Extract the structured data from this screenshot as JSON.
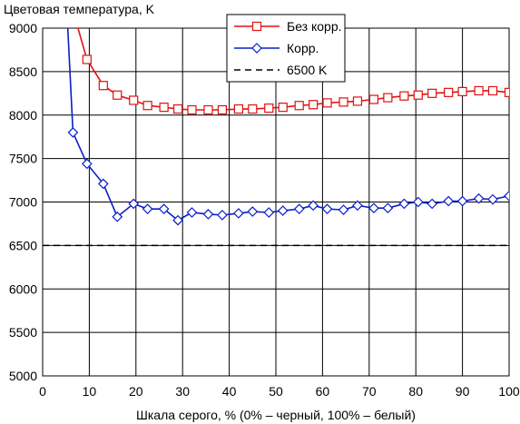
{
  "chart_data": {
    "type": "line",
    "title": "",
    "ylabel": "Цветовая температура, K",
    "xlabel": "Шкала серого, % (0% – черный, 100% – белый)",
    "xlim": [
      0,
      100
    ],
    "ylim": [
      5000,
      9000
    ],
    "x_ticks": [
      "0",
      "10",
      "20",
      "30",
      "40",
      "50",
      "60",
      "70",
      "80",
      "90",
      "100"
    ],
    "y_ticks": [
      "5000",
      "5500",
      "6000",
      "6500",
      "7000",
      "7500",
      "8000",
      "8500",
      "9000"
    ],
    "grid": true,
    "legend_position": "top-center",
    "series": [
      {
        "name": "Без корр.",
        "color": "#e01010",
        "marker": "square",
        "x": [
          6.5,
          9.5,
          13,
          16,
          19.5,
          22.5,
          26,
          29,
          32,
          35.5,
          38.5,
          42,
          45,
          48.5,
          51.5,
          55,
          58,
          61,
          64.5,
          67.5,
          71,
          74,
          77.5,
          80.5,
          83.5,
          87,
          90,
          93.5,
          96.5,
          100
        ],
        "y": [
          9200,
          8640,
          8340,
          8230,
          8170,
          8110,
          8090,
          8070,
          8060,
          8060,
          8060,
          8070,
          8070,
          8080,
          8090,
          8110,
          8120,
          8140,
          8150,
          8160,
          8180,
          8200,
          8220,
          8230,
          8250,
          8260,
          8270,
          8280,
          8280,
          8260
        ]
      },
      {
        "name": "Корр.",
        "color": "#0a1fc8",
        "marker": "diamond",
        "x": [
          5.2,
          6.5,
          9.5,
          13,
          16,
          19.5,
          22.5,
          26,
          29,
          32,
          35.5,
          38.5,
          42,
          45,
          48.5,
          51.5,
          55,
          58,
          61,
          64.5,
          67.5,
          71,
          74,
          77.5,
          80.5,
          83.5,
          87,
          90,
          93.5,
          96.5,
          100
        ],
        "y": [
          9200,
          7800,
          7440,
          7210,
          6830,
          6980,
          6920,
          6920,
          6790,
          6880,
          6860,
          6850,
          6870,
          6890,
          6880,
          6900,
          6920,
          6960,
          6920,
          6910,
          6960,
          6930,
          6930,
          6980,
          7000,
          6980,
          7010,
          7010,
          7040,
          7030,
          7070
        ]
      },
      {
        "name": "6500 K",
        "color": "#000000",
        "marker": "none",
        "dashed": true,
        "x": [
          0,
          100
        ],
        "y": [
          6500,
          6500
        ]
      }
    ]
  }
}
